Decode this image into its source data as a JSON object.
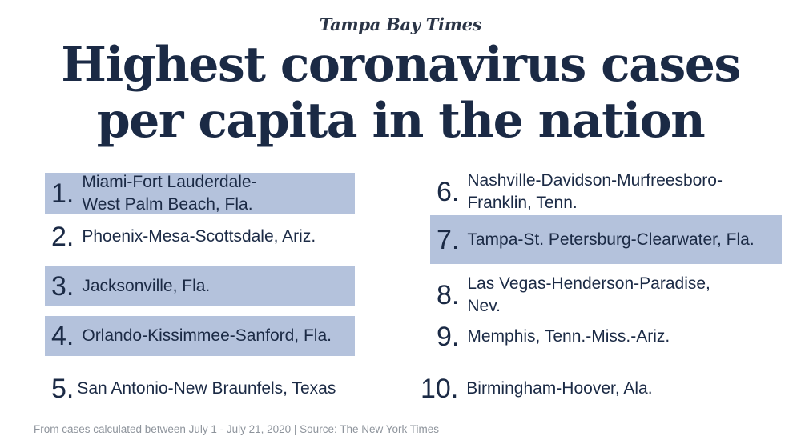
{
  "masthead": "Tampa Bay Times",
  "headline": {
    "line1": "Highest coronavirus cases",
    "line2": "per capita in the nation"
  },
  "items": [
    {
      "rank": "1.",
      "line1": "Miami-Fort Lauderdale-",
      "line2": "West Palm Beach, Fla.",
      "highlighted": true
    },
    {
      "rank": "2.",
      "line1": "Phoenix-Mesa-Scottsdale, Ariz.",
      "highlighted": false
    },
    {
      "rank": "3.",
      "line1": "Jacksonville, Fla.",
      "highlighted": true
    },
    {
      "rank": "4.",
      "line1": "Orlando-Kissimmee-Sanford, Fla.",
      "highlighted": true
    },
    {
      "rank": "5.",
      "line1": "San Antonio-New Braunfels, Texas",
      "highlighted": false
    },
    {
      "rank": "6.",
      "line1": "Nashville-Davidson-Murfreesboro-",
      "line2": "Franklin, Tenn.",
      "highlighted": false
    },
    {
      "rank": "7.",
      "line1": "Tampa-St. Petersburg-Clearwater, Fla.",
      "highlighted": true
    },
    {
      "rank": "8.",
      "line1": "Las Vegas-Henderson-Paradise,",
      "line2": "Nev.",
      "highlighted": false
    },
    {
      "rank": "9.",
      "line1": "Memphis, Tenn.-Miss.-Ariz.",
      "highlighted": false
    },
    {
      "rank": "10.",
      "line1": "Birmingham-Hoover, Ala.",
      "highlighted": false
    }
  ],
  "colors": {
    "highlight": "#b4c2dc",
    "text": "#1b2a45",
    "footer": "#8e949c"
  },
  "footer": "From cases calculated between July 1 - July 21, 2020 | Source: The New York Times"
}
